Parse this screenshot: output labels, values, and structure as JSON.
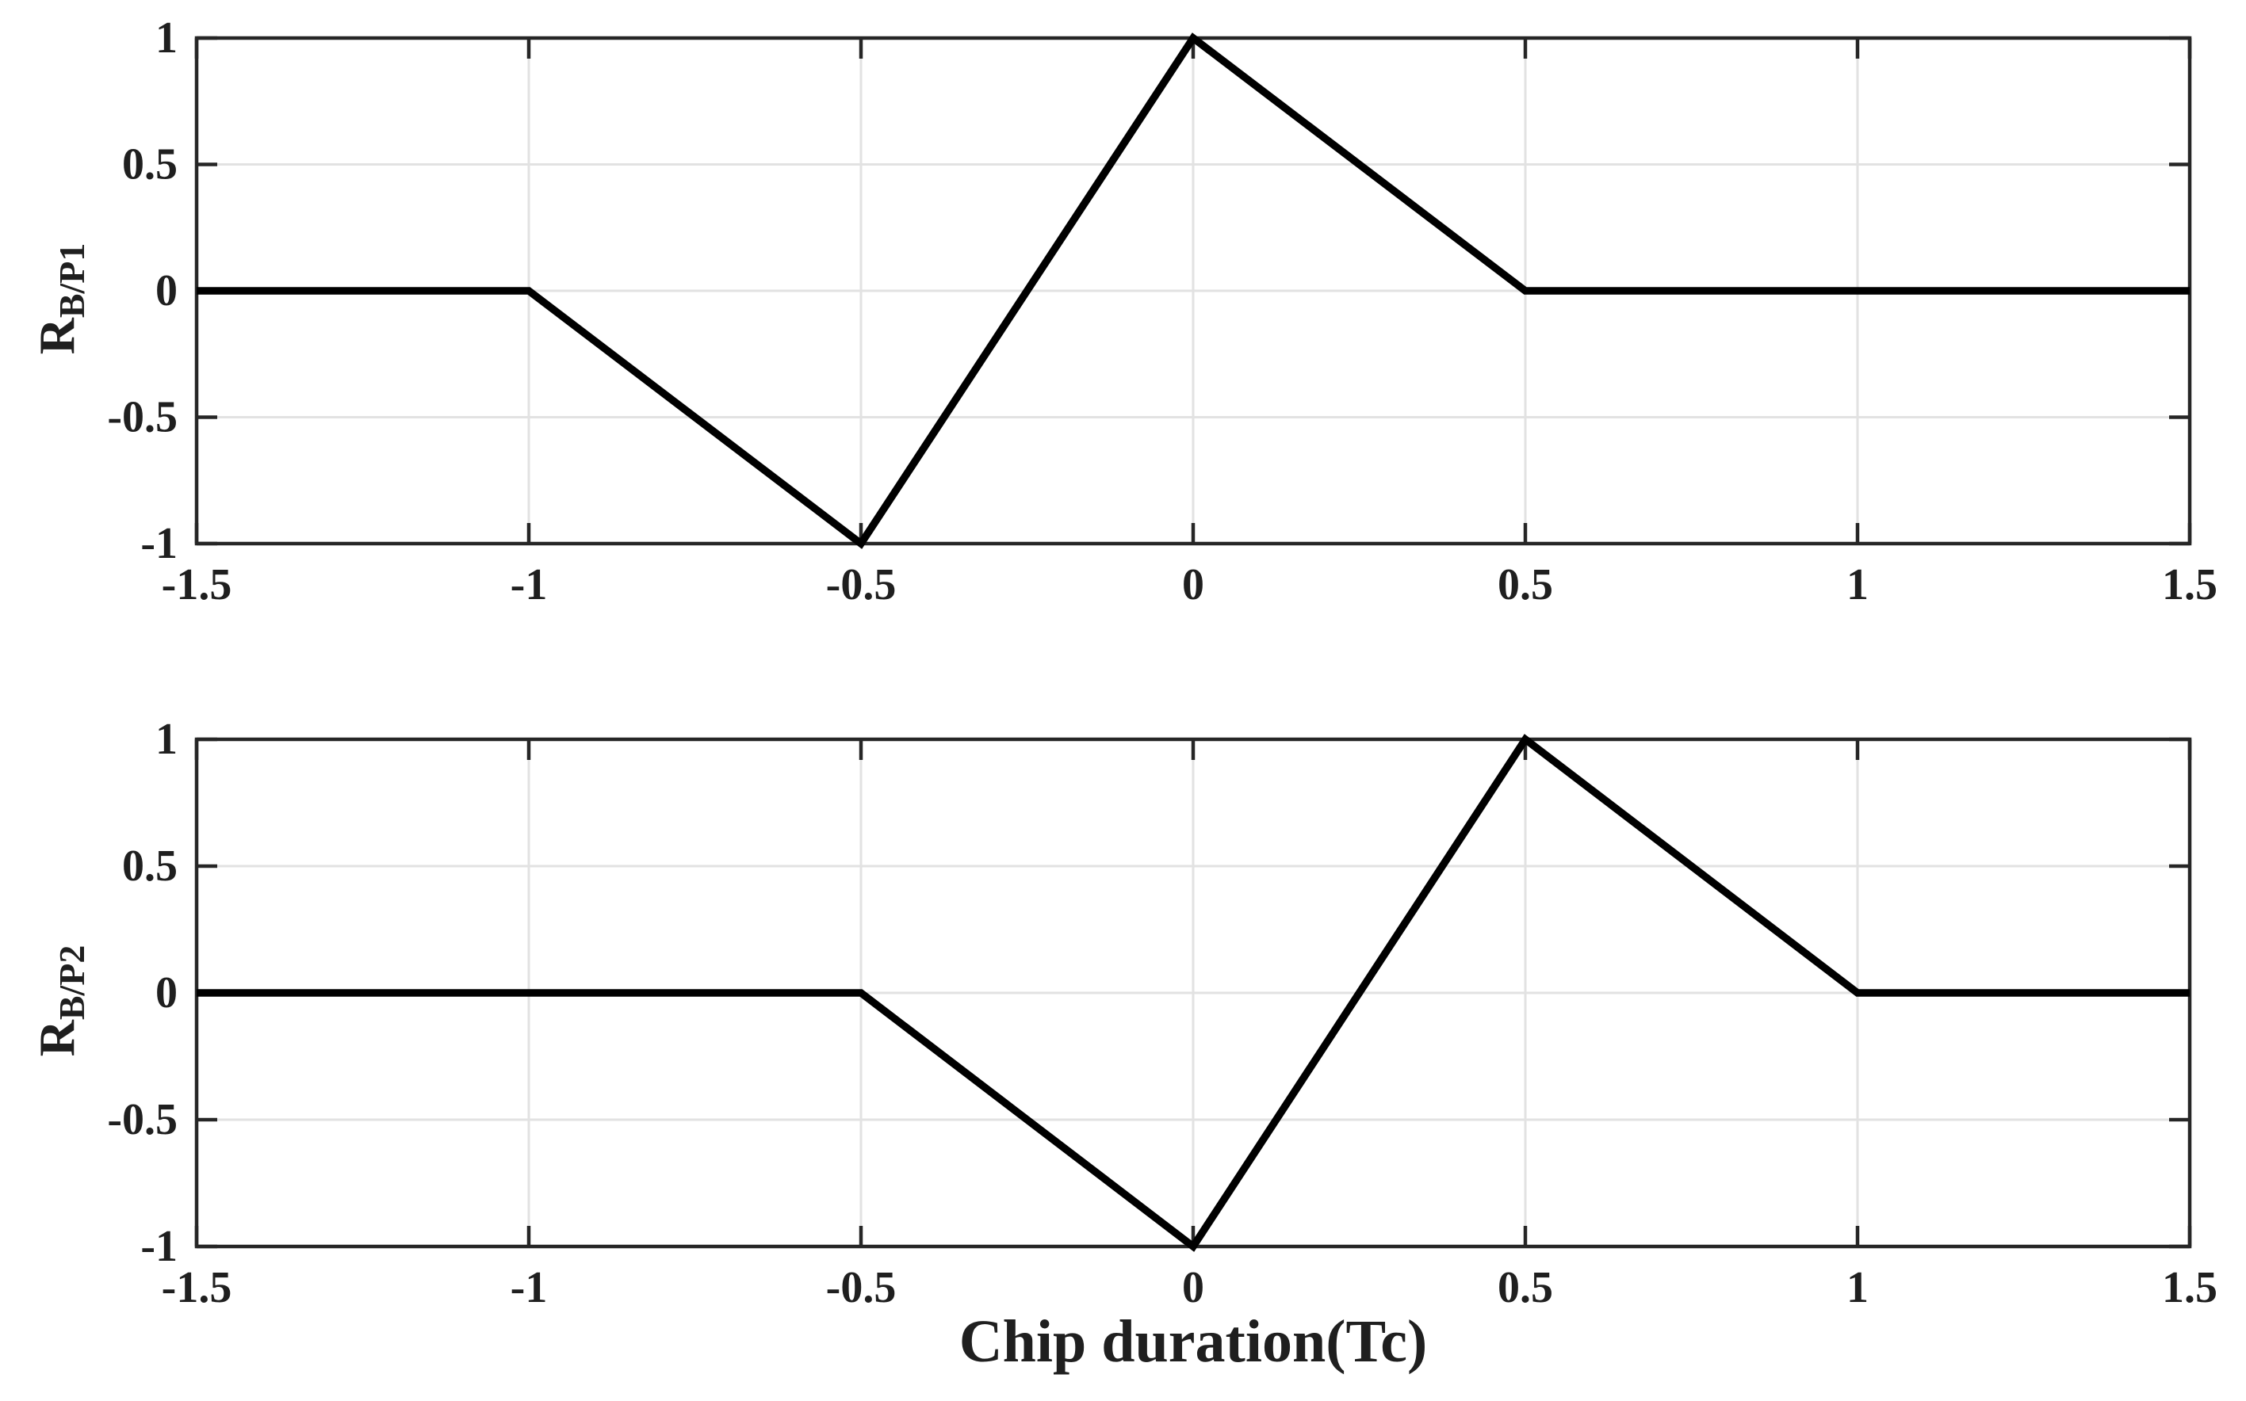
{
  "figure": {
    "background": "#ffffff"
  },
  "colors": {
    "axis": "#262626",
    "grid": "#e2e2e2",
    "tick_text": "#1f1f1f",
    "line": "#000000"
  },
  "chart_data": [
    {
      "type": "line",
      "title": "",
      "xlabel": "",
      "ylabel_base": "R",
      "ylabel_sub": "B/P1",
      "xlim": [
        -1.5,
        1.5
      ],
      "ylim": [
        -1,
        1
      ],
      "xticks": [
        -1.5,
        -1,
        -0.5,
        0,
        0.5,
        1,
        1.5
      ],
      "xtick_labels": [
        "-1.5",
        "-1",
        "-0.5",
        "0",
        "0.5",
        "1",
        "1.5"
      ],
      "yticks": [
        -1,
        -0.5,
        0,
        0.5,
        1
      ],
      "ytick_labels": [
        "-1",
        "-0.5",
        "0",
        "0.5",
        "1"
      ],
      "grid": true,
      "legend": null,
      "series": [
        {
          "name": "R_B/P1",
          "color": "#000000",
          "x": [
            -1.5,
            -1,
            -0.5,
            0,
            0.5,
            1.5
          ],
          "y": [
            0,
            0,
            -1,
            1,
            0,
            0
          ]
        }
      ]
    },
    {
      "type": "line",
      "title": "",
      "xlabel": "Chip duration(Tc)",
      "ylabel_base": "R",
      "ylabel_sub": "B/P2",
      "xlim": [
        -1.5,
        1.5
      ],
      "ylim": [
        -1,
        1
      ],
      "xticks": [
        -1.5,
        -1,
        -0.5,
        0,
        0.5,
        1,
        1.5
      ],
      "xtick_labels": [
        "-1.5",
        "-1",
        "-0.5",
        "0",
        "0.5",
        "1",
        "1.5"
      ],
      "yticks": [
        -1,
        -0.5,
        0,
        0.5,
        1
      ],
      "ytick_labels": [
        "-1",
        "-0.5",
        "0",
        "0.5",
        "1"
      ],
      "grid": true,
      "legend": null,
      "series": [
        {
          "name": "R_B/P2",
          "color": "#000000",
          "x": [
            -1.5,
            -0.5,
            0,
            0.5,
            1,
            1.5
          ],
          "y": [
            0,
            0,
            -1,
            1,
            0,
            0
          ]
        }
      ]
    }
  ]
}
